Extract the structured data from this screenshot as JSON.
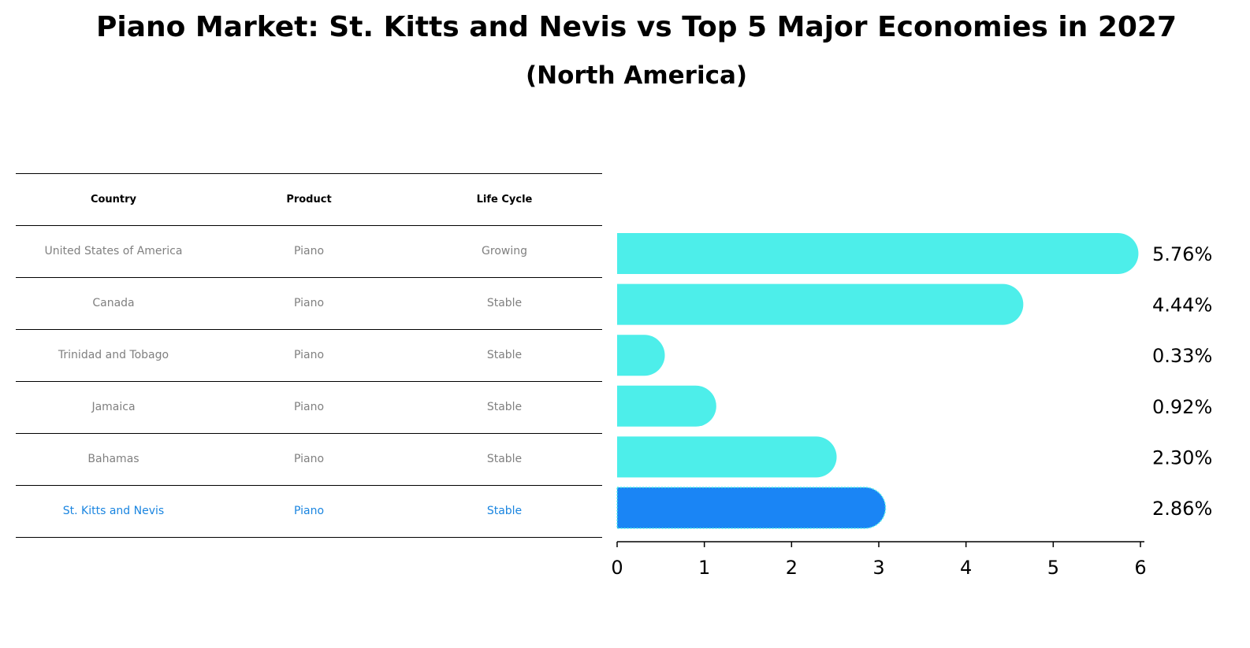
{
  "header": {
    "title": "Piano Market: St. Kitts and Nevis vs Top 5 Major Economies in 2027",
    "subtitle": "(North America)"
  },
  "table": {
    "columns": [
      "Country",
      "Product",
      "Life Cycle"
    ],
    "rows": [
      {
        "country": "United States of America",
        "product": "Piano",
        "life_cycle": "Growing"
      },
      {
        "country": "Canada",
        "product": "Piano",
        "life_cycle": "Stable"
      },
      {
        "country": "Trinidad and Tobago",
        "product": "Piano",
        "life_cycle": "Stable"
      },
      {
        "country": "Jamaica",
        "product": "Piano",
        "life_cycle": "Stable"
      },
      {
        "country": "Bahamas",
        "product": "Piano",
        "life_cycle": "Stable"
      },
      {
        "country": "St. Kitts and Nevis",
        "product": "Piano",
        "life_cycle": "Stable"
      }
    ]
  },
  "chart_data": {
    "type": "bar",
    "orientation": "horizontal",
    "categories": [
      "United States of America",
      "Canada",
      "Trinidad and Tobago",
      "Jamaica",
      "Bahamas",
      "St. Kitts and Nevis"
    ],
    "values": [
      5.76,
      4.44,
      0.33,
      0.92,
      2.3,
      2.86
    ],
    "value_labels": [
      "5.76%",
      "4.44%",
      "0.33%",
      "0.92%",
      "2.30%",
      "2.86%"
    ],
    "highlight_index": 5,
    "xlim": [
      0,
      6
    ],
    "xticks": [
      0,
      1,
      2,
      3,
      4,
      5,
      6
    ],
    "colors": {
      "default": "#4deeea",
      "highlight": "#1a85f5"
    }
  }
}
